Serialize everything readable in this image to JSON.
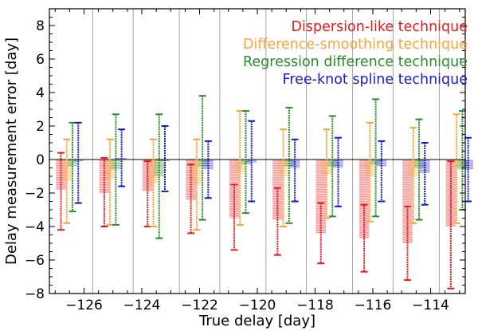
{
  "chart_data": {
    "type": "bar",
    "title": "",
    "xlabel": "True delay [day]",
    "ylabel": "Delay measurement error [day]",
    "xlim": [
      -127.2,
      -112.8
    ],
    "ylim": [
      -8,
      9
    ],
    "xticks": [
      -126,
      -124,
      -122,
      -120,
      -118,
      -116,
      -114
    ],
    "xtick_labels": [
      "−126",
      "−124",
      "−122",
      "−120",
      "−118",
      "−116",
      "−114"
    ],
    "yticks": [
      -8,
      -6,
      -4,
      -2,
      0,
      2,
      4,
      6,
      8
    ],
    "ytick_labels": [
      "−8",
      "−6",
      "−4",
      "−2",
      "0",
      "2",
      "4",
      "6",
      "8"
    ],
    "group_boundaries": [
      -125.7,
      -124.3,
      -122.7,
      -121.3,
      -119.7,
      -118.3,
      -116.7,
      -115.3,
      -113.7
    ],
    "legend_position": "top-right",
    "series": [
      {
        "name": "Dispersion-like technique",
        "color": "#e41a1c",
        "x": [
          -126.8,
          -125.3,
          -123.8,
          -122.3,
          -120.8,
          -119.3,
          -117.8,
          -116.3,
          -114.8,
          -113.3
        ],
        "values": [
          -1.8,
          -2.0,
          -1.9,
          -2.4,
          -3.5,
          -3.6,
          -4.4,
          -4.7,
          -5.0,
          -4.0
        ],
        "err_low": [
          -4.2,
          -4.0,
          -4.0,
          -4.4,
          -5.4,
          -5.7,
          -6.2,
          -6.7,
          -7.2,
          -7.7
        ],
        "err_high": [
          0.4,
          0.1,
          -0.1,
          -0.3,
          -1.5,
          -1.7,
          -2.6,
          -2.7,
          -2.8,
          -0.1
        ]
      },
      {
        "name": "Difference-smoothing technique",
        "color": "#f7a53a",
        "x": [
          -126.6,
          -125.1,
          -123.6,
          -122.1,
          -120.6,
          -119.1,
          -117.6,
          -116.1,
          -114.6,
          -113.1
        ],
        "values": [
          -1.3,
          -1.2,
          -1.4,
          -1.5,
          -0.8,
          -1.0,
          -0.9,
          -1.0,
          -1.0,
          -0.5
        ],
        "err_low": [
          -3.8,
          -3.9,
          -4.0,
          -4.2,
          -3.9,
          -4.0,
          -3.5,
          -3.7,
          -3.8,
          -3.8
        ],
        "err_high": [
          1.2,
          1.2,
          1.2,
          1.2,
          2.9,
          1.8,
          1.8,
          2.2,
          1.9,
          2.7
        ]
      },
      {
        "name": "Regression difference technique",
        "color": "#2a8c2a",
        "x": [
          -126.4,
          -124.9,
          -123.4,
          -121.9,
          -120.4,
          -118.9,
          -117.4,
          -115.9,
          -114.4,
          -112.9
        ],
        "values": [
          -0.4,
          -0.6,
          -1.0,
          -0.4,
          -0.3,
          -0.4,
          -0.4,
          -0.3,
          -0.5,
          -0.6
        ],
        "err_low": [
          -3.1,
          -3.9,
          -4.7,
          -3.6,
          -3.2,
          -3.8,
          -3.4,
          -3.4,
          -3.6,
          -3.0
        ],
        "err_high": [
          2.2,
          2.7,
          2.7,
          3.8,
          2.9,
          3.1,
          2.6,
          3.6,
          2.4,
          2.9
        ]
      },
      {
        "name": "Free-knot spline technique",
        "color": "#1a1acc",
        "x": [
          -126.2,
          -124.7,
          -123.2,
          -121.7,
          -120.2,
          -118.7,
          -117.2,
          -115.7,
          -114.2,
          -112.7
        ],
        "values": [
          -0.1,
          0.1,
          -0.1,
          -0.6,
          -0.2,
          -0.5,
          -0.5,
          -0.4,
          -0.8,
          -0.6
        ],
        "err_low": [
          -2.6,
          -1.6,
          -1.9,
          -2.3,
          -2.5,
          -2.5,
          -2.8,
          -2.5,
          -2.7,
          -2.5
        ],
        "err_high": [
          2.2,
          1.8,
          2.0,
          1.1,
          2.3,
          1.2,
          1.3,
          1.1,
          1.0,
          1.3
        ]
      }
    ]
  }
}
